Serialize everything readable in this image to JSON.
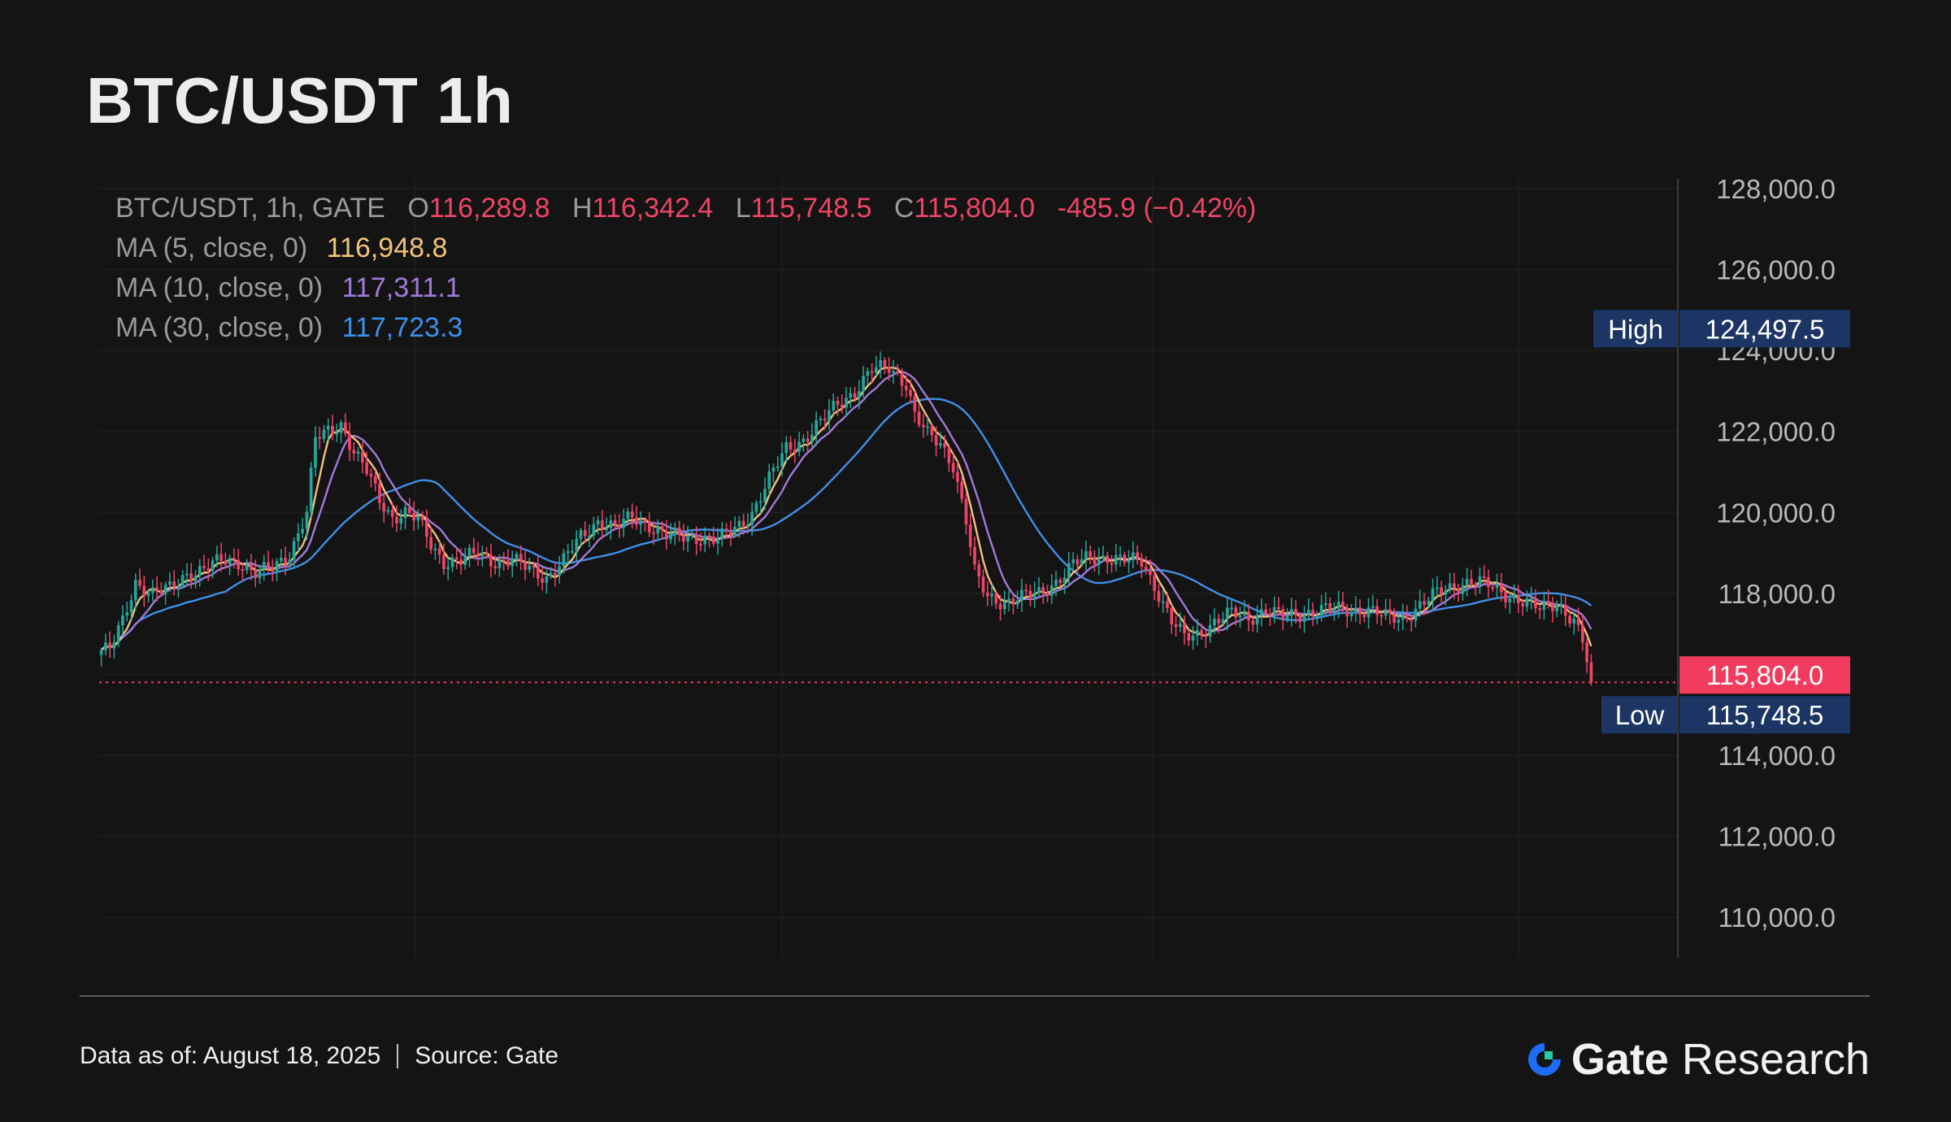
{
  "header": {
    "title": "BTC/USDT 1h"
  },
  "legend": {
    "symbol": "BTC/USDT, 1h, GATE",
    "open_label": "O",
    "open": "116,289.8",
    "high_label": "H",
    "high": "116,342.4",
    "low_label": "L",
    "low": "115,748.5",
    "close_label": "C",
    "close": "115,804.0",
    "change": "-485.9 (−0.42%)",
    "ma5_label": "MA (5, close, 0)",
    "ma5_value": "116,948.8",
    "ma10_label": "MA (10, close, 0)",
    "ma10_value": "117,311.1",
    "ma30_label": "MA (30, close, 0)",
    "ma30_value": "117,723.3"
  },
  "markers": {
    "high_label": "High",
    "high_value": "124,497.5",
    "low_label": "Low",
    "low_value": "115,748.5",
    "last_value": "115,804.0"
  },
  "footer": {
    "data_as_of": "Data as of: August 18, 2025",
    "source": "Source: Gate",
    "brand_name": "Gate",
    "brand_sub": "Research"
  },
  "colors": {
    "up": "#26a69a",
    "down": "#ef4466",
    "ma5": "#f2c27c",
    "ma10": "#a07ad8",
    "ma30": "#3f8fe8",
    "marker_bg": "#1c3564",
    "last_bg": "#f23b5d",
    "background": "#141414"
  },
  "chart_data": {
    "type": "candlestick",
    "y_axis_ticks": [
      "110,000.0",
      "112,000.0",
      "114,000.0",
      "116,000.0",
      "118,000.0",
      "120,000.0",
      "122,000.0",
      "124,000.0",
      "126,000.0",
      "128,000.0"
    ],
    "ylim": [
      109000,
      128000
    ],
    "grid": true,
    "note_values": "approximate close path read from chart, hourly candles",
    "close_path": [
      [
        0,
        116600
      ],
      [
        2,
        116600
      ],
      [
        5,
        117300
      ],
      [
        8,
        118300
      ],
      [
        12,
        118000
      ],
      [
        16,
        118100
      ],
      [
        20,
        118500
      ],
      [
        24,
        118600
      ],
      [
        28,
        118800
      ],
      [
        32,
        118800
      ],
      [
        36,
        118500
      ],
      [
        40,
        118600
      ],
      [
        44,
        119000
      ],
      [
        48,
        120000
      ],
      [
        50,
        121800
      ],
      [
        53,
        122000
      ],
      [
        56,
        122200
      ],
      [
        59,
        121500
      ],
      [
        62,
        121000
      ],
      [
        65,
        120300
      ],
      [
        68,
        119900
      ],
      [
        71,
        120000
      ],
      [
        74,
        119800
      ],
      [
        77,
        119200
      ],
      [
        80,
        118800
      ],
      [
        84,
        118800
      ],
      [
        88,
        119000
      ],
      [
        92,
        118800
      ],
      [
        96,
        118800
      ],
      [
        100,
        118600
      ],
      [
        104,
        118400
      ],
      [
        108,
        118800
      ],
      [
        112,
        119400
      ],
      [
        116,
        119800
      ],
      [
        120,
        119600
      ],
      [
        124,
        119900
      ],
      [
        128,
        119700
      ],
      [
        132,
        119400
      ],
      [
        136,
        119400
      ],
      [
        140,
        119400
      ],
      [
        144,
        119300
      ],
      [
        148,
        119600
      ],
      [
        152,
        120000
      ],
      [
        156,
        120800
      ],
      [
        160,
        121600
      ],
      [
        164,
        121800
      ],
      [
        168,
        122200
      ],
      [
        172,
        122700
      ],
      [
        176,
        123000
      ],
      [
        180,
        123500
      ],
      [
        184,
        123600
      ],
      [
        188,
        123200
      ],
      [
        190,
        122400
      ],
      [
        193,
        121900
      ],
      [
        196,
        121700
      ],
      [
        199,
        121200
      ],
      [
        202,
        119800
      ],
      [
        204,
        118500
      ],
      [
        207,
        117900
      ],
      [
        211,
        117800
      ],
      [
        215,
        117900
      ],
      [
        219,
        118000
      ],
      [
        223,
        118300
      ],
      [
        227,
        118700
      ],
      [
        231,
        118900
      ],
      [
        235,
        118900
      ],
      [
        239,
        118800
      ],
      [
        243,
        118800
      ],
      [
        247,
        118000
      ],
      [
        250,
        117300
      ],
      [
        253,
        116900
      ],
      [
        256,
        117000
      ],
      [
        260,
        117300
      ],
      [
        264,
        117500
      ],
      [
        268,
        117400
      ],
      [
        272,
        117600
      ],
      [
        276,
        117400
      ],
      [
        280,
        117500
      ],
      [
        284,
        117600
      ],
      [
        288,
        117600
      ],
      [
        292,
        117600
      ],
      [
        296,
        117600
      ],
      [
        300,
        117400
      ],
      [
        304,
        117400
      ],
      [
        308,
        117700
      ],
      [
        312,
        118000
      ],
      [
        316,
        118200
      ],
      [
        320,
        118300
      ],
      [
        324,
        118200
      ],
      [
        328,
        118000
      ],
      [
        332,
        117800
      ],
      [
        336,
        117600
      ],
      [
        340,
        117800
      ],
      [
        344,
        117300
      ],
      [
        346,
        116800
      ],
      [
        348,
        115804
      ]
    ],
    "ma5": [
      116948.8
    ],
    "ma10": [
      117311.1
    ],
    "ma30": [
      117723.3
    ],
    "high": 124497.5,
    "low": 115748.5,
    "last": 115804.0
  }
}
